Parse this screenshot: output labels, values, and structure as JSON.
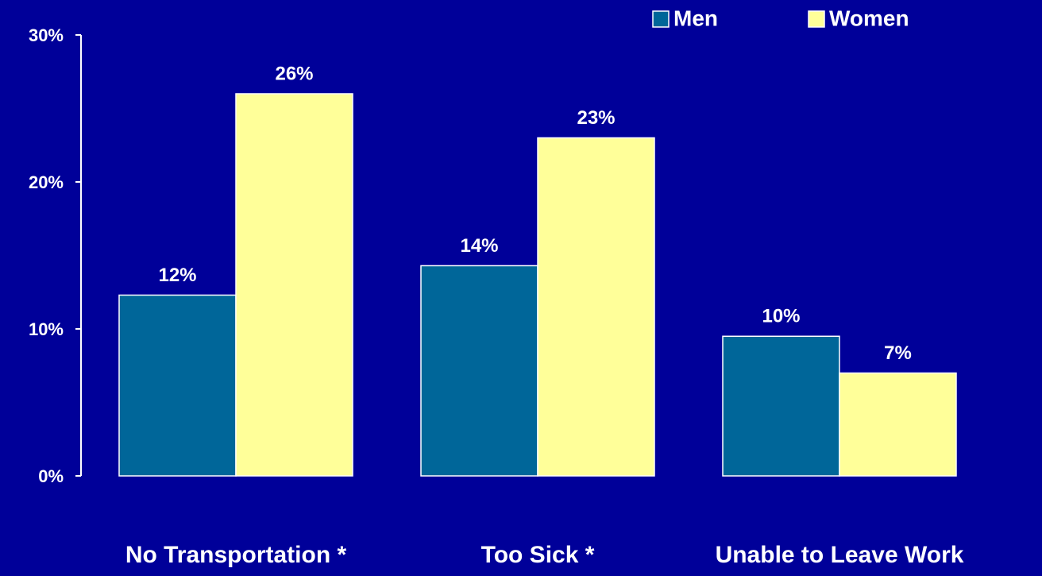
{
  "chart_data": {
    "type": "bar",
    "categories": [
      "No Transportation *",
      "Too Sick *",
      "Unable to Leave Work"
    ],
    "series": [
      {
        "name": "Men",
        "color": "#006699",
        "values": [
          12.3,
          14.3,
          9.5
        ],
        "value_labels": [
          "12%",
          "14%",
          "10%"
        ]
      },
      {
        "name": "Women",
        "color": "#ffff99",
        "values": [
          26,
          23,
          7
        ],
        "value_labels": [
          "26%",
          "23%",
          "7%"
        ]
      }
    ],
    "ylim": [
      0,
      30
    ],
    "yticks": [
      {
        "value": 0,
        "label": "0%"
      },
      {
        "value": 10,
        "label": "10%"
      },
      {
        "value": 20,
        "label": "20%"
      },
      {
        "value": 30,
        "label": "30%"
      }
    ],
    "grid": false,
    "legend": "top-right"
  }
}
